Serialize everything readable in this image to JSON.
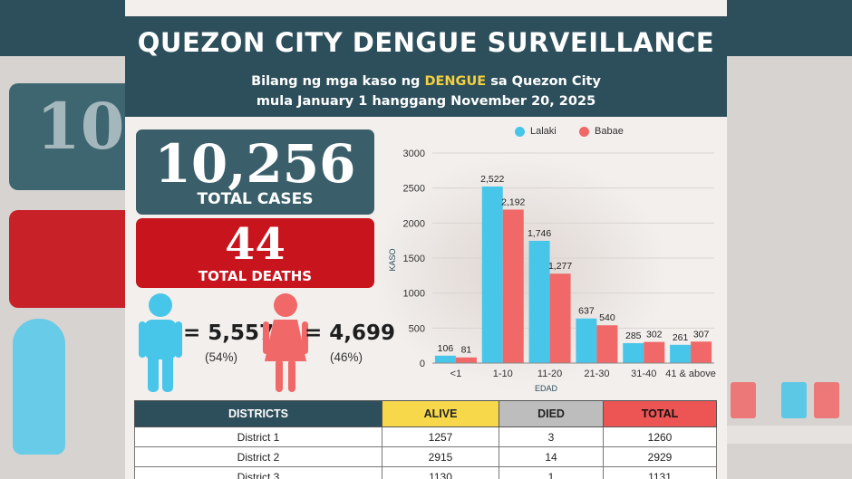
{
  "header": {
    "title": "QUEZON CITY DENGUE SURVEILLANCE",
    "subtitle_prefix": "Bilang ng mga kaso ng ",
    "subtitle_highlight": "DENGUE",
    "subtitle_suffix": " sa Quezon City",
    "subtitle_line2": "mula January 1 hanggang November 20, 2025"
  },
  "summary": {
    "total_cases": "10,256",
    "total_cases_label": "TOTAL CASES",
    "total_deaths": "44",
    "total_deaths_label": "TOTAL DEATHS"
  },
  "gender": {
    "male_value": "= 5,557",
    "male_pct": "(54%)",
    "female_value": "= 4,699",
    "female_pct": "(46%)",
    "male_color": "#48c6ea",
    "female_color": "#f06868"
  },
  "chart_data": {
    "type": "bar",
    "title": "",
    "xlabel": "EDAD",
    "ylabel": "KASO",
    "ylim": [
      0,
      3000
    ],
    "yticks": [
      0,
      500,
      1000,
      1500,
      2000,
      2500,
      3000
    ],
    "grid": true,
    "legend_position": "top",
    "categories": [
      "<1",
      "1-10",
      "11-20",
      "21-30",
      "31-40",
      "41 & above"
    ],
    "series": [
      {
        "name": "Lalaki",
        "color": "#48c6ea",
        "values": [
          106,
          2522,
          1746,
          637,
          285,
          261
        ],
        "labels": [
          "106",
          "2,522",
          "1,746",
          "637",
          "285",
          "261"
        ]
      },
      {
        "name": "Babae",
        "color": "#f06868",
        "values": [
          81,
          2192,
          1277,
          540,
          302,
          307
        ],
        "labels": [
          "81",
          "2,192",
          "1,277",
          "540",
          "302",
          "307"
        ]
      }
    ]
  },
  "table": {
    "headers": [
      "DISTRICTS",
      "ALIVE",
      "DIED",
      "TOTAL"
    ],
    "rows": [
      [
        "District 1",
        "1257",
        "3",
        "1260"
      ],
      [
        "District 2",
        "2915",
        "14",
        "2929"
      ],
      [
        "District 3",
        "1130",
        "1",
        "1131"
      ]
    ]
  }
}
